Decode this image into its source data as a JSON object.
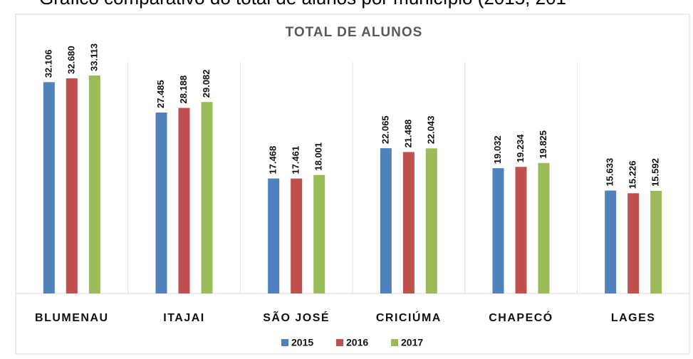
{
  "caption": "Gráfico comparativo do total de alunos por município (2015, 201",
  "chart_data": {
    "type": "bar",
    "title": "TOTAL DE ALUNOS",
    "categories": [
      "BLUMENAU",
      "ITAJAI",
      "SÃO JOSÉ",
      "CRICIÚMA",
      "CHAPECÓ",
      "LAGES"
    ],
    "series": [
      {
        "name": "2015",
        "color": "#4f81bd",
        "values": [
          32106,
          27485,
          17468,
          22065,
          19032,
          15633
        ],
        "value_labels": [
          "32.106",
          "27.485",
          "17.468",
          "22.065",
          "19.032",
          "15.633"
        ]
      },
      {
        "name": "2016",
        "color": "#c0504d",
        "values": [
          32680,
          28188,
          17461,
          21488,
          19234,
          15226
        ],
        "value_labels": [
          "32.680",
          "28.188",
          "17.461",
          "21.488",
          "19.234",
          "15.226"
        ]
      },
      {
        "name": "2017",
        "color": "#9bbb59",
        "values": [
          33113,
          29082,
          18001,
          22043,
          19825,
          15592
        ],
        "value_labels": [
          "33.113",
          "29.082",
          "18.001",
          "22.043",
          "19.825",
          "15.592"
        ]
      }
    ],
    "legend": "bottom"
  }
}
